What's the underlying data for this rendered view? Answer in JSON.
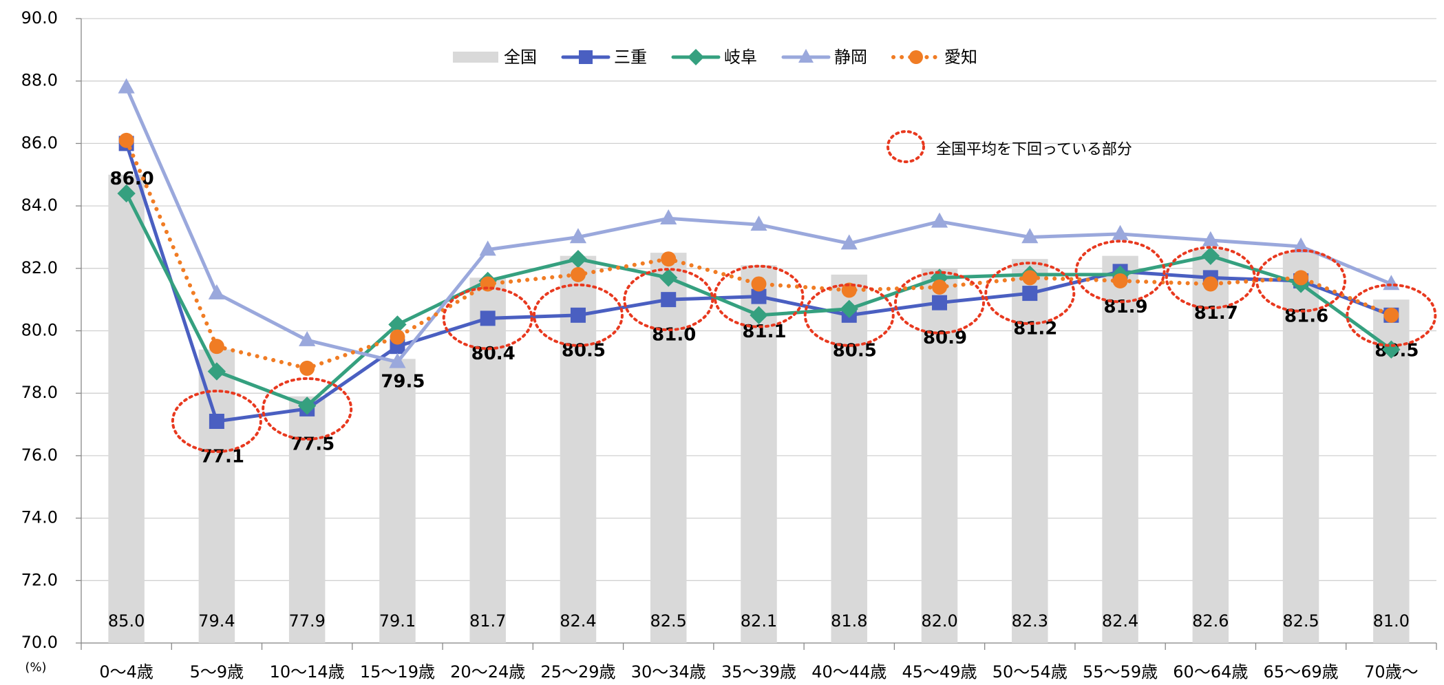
{
  "chart_data": {
    "type": "combo",
    "categories": [
      "0～4歳",
      "5～9歳",
      "10～14歳",
      "15～19歳",
      "20～24歳",
      "25～29歳",
      "30～34歳",
      "35～39歳",
      "40～44歳",
      "45～49歳",
      "50～54歳",
      "55～59歳",
      "60～64歳",
      "65～69歳",
      "70歳～"
    ],
    "series": [
      {
        "name": "全国",
        "type": "bar",
        "color": "#d9d9d9",
        "values": [
          85.0,
          79.4,
          77.9,
          79.1,
          81.7,
          82.4,
          82.5,
          82.1,
          81.8,
          82.0,
          82.3,
          82.4,
          82.6,
          82.5,
          81.0
        ],
        "value_labels": [
          "85.0",
          "79.4",
          "77.9",
          "79.1",
          "81.7",
          "82.4",
          "82.5",
          "82.1",
          "81.8",
          "82.0",
          "82.3",
          "82.4",
          "82.6",
          "82.5",
          "81.0"
        ]
      },
      {
        "name": "三重",
        "type": "line",
        "color": "#4a5fc1",
        "marker": "square",
        "values": [
          86.0,
          77.1,
          77.5,
          79.5,
          80.4,
          80.5,
          81.0,
          81.1,
          80.5,
          80.9,
          81.2,
          81.9,
          81.7,
          81.6,
          80.5
        ],
        "value_labels": [
          "86.0",
          "77.1",
          "77.5",
          "79.5",
          "80.4",
          "80.5",
          "81.0",
          "81.1",
          "80.5",
          "80.9",
          "81.2",
          "81.9",
          "81.7",
          "81.6",
          "80.5"
        ]
      },
      {
        "name": "岐阜",
        "type": "line",
        "color": "#35a07f",
        "marker": "diamond",
        "values": [
          84.4,
          78.7,
          77.6,
          80.2,
          81.6,
          82.3,
          81.7,
          80.5,
          80.7,
          81.7,
          81.8,
          81.8,
          82.4,
          81.5,
          79.4
        ]
      },
      {
        "name": "静岡",
        "type": "line",
        "color": "#9aa8dc",
        "marker": "triangle",
        "values": [
          87.8,
          81.2,
          79.7,
          79.0,
          82.6,
          83.0,
          83.6,
          83.4,
          82.8,
          83.5,
          83.0,
          83.1,
          82.9,
          82.7,
          81.5
        ]
      },
      {
        "name": "愛知",
        "type": "line",
        "color": "#f07c24",
        "marker": "circle",
        "line_style": "dotted",
        "values": [
          86.1,
          79.5,
          78.8,
          79.8,
          81.5,
          81.8,
          82.3,
          81.5,
          81.3,
          81.4,
          81.7,
          81.6,
          81.5,
          81.7,
          80.5
        ]
      }
    ],
    "ylim": [
      70,
      90
    ],
    "yticks": [
      {
        "value": 70,
        "label": "70.0"
      },
      {
        "value": 72,
        "label": "72.0"
      },
      {
        "value": 74,
        "label": "74.0"
      },
      {
        "value": 76,
        "label": "76.0"
      },
      {
        "value": 78,
        "label": "78.0"
      },
      {
        "value": 80,
        "label": "80.0"
      },
      {
        "value": 82,
        "label": "82.0"
      },
      {
        "value": 84,
        "label": "84.0"
      },
      {
        "value": 86,
        "label": "86.0"
      },
      {
        "value": 88,
        "label": "88.0"
      },
      {
        "value": 90,
        "label": "90.0"
      }
    ],
    "y_unit": "(%)",
    "grid": true,
    "annotation": "全国平均を下回っている部分"
  }
}
